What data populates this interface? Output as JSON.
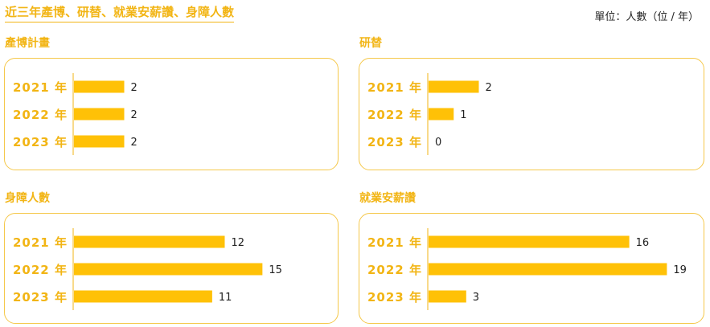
{
  "header": {
    "title": "近三年產博、研替、就業安薪讚、身障人數",
    "unit_note": "單位：人數（位 / 年）"
  },
  "colors": {
    "accent": "#f2b515",
    "bar": "#ffc107",
    "border": "#f5c84a",
    "axis": "#f2b515",
    "text": "#222222"
  },
  "chart_data": [
    {
      "type": "bar",
      "orientation": "horizontal",
      "title": "產博計畫",
      "categories": [
        "2021 年",
        "2022 年",
        "2023 年"
      ],
      "values": [
        2,
        2,
        2
      ],
      "xlim": [
        0,
        8
      ]
    },
    {
      "type": "bar",
      "orientation": "horizontal",
      "title": "研替",
      "categories": [
        "2021 年",
        "2022 年",
        "2023 年"
      ],
      "values": [
        2,
        1,
        0
      ],
      "xlim": [
        0,
        8
      ]
    },
    {
      "type": "bar",
      "orientation": "horizontal",
      "title": "身障人數",
      "categories": [
        "2021 年",
        "2022 年",
        "2023 年"
      ],
      "values": [
        12,
        15,
        11
      ],
      "xlim": [
        0,
        16
      ]
    },
    {
      "type": "bar",
      "orientation": "horizontal",
      "title": "就業安薪讚",
      "categories": [
        "2021 年",
        "2022 年",
        "2023 年"
      ],
      "values": [
        16,
        19,
        3
      ],
      "xlim": [
        0,
        20
      ]
    }
  ]
}
